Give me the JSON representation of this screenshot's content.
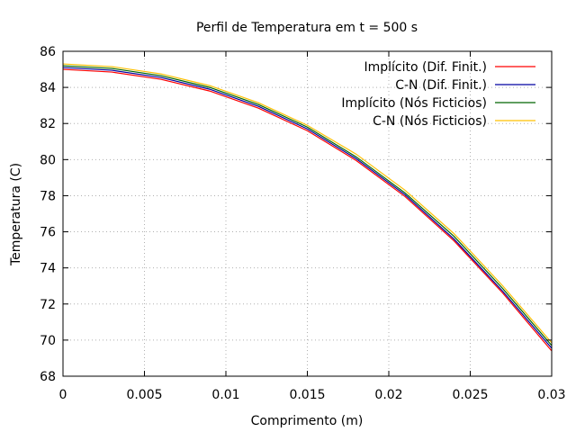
{
  "chart_data": {
    "type": "line",
    "title": "Perfil de Temperatura em t = 500 s",
    "xlabel": "Comprimento (m)",
    "ylabel": "Temperatura (C)",
    "xlim": [
      0,
      0.03
    ],
    "ylim": [
      68,
      86
    ],
    "xticks": [
      "0",
      "0.005",
      "0.01",
      "0.015",
      "0.02",
      "0.025",
      "0.03"
    ],
    "yticks": [
      "68",
      "70",
      "72",
      "74",
      "76",
      "78",
      "80",
      "82",
      "84",
      "86"
    ],
    "grid": true,
    "legend_position": "top-right",
    "x": [
      0,
      0.003,
      0.006,
      0.009,
      0.012,
      0.015,
      0.018,
      0.021,
      0.024,
      0.027,
      0.03
    ],
    "series": [
      {
        "name": "Implícito (Dif. Finit.)",
        "color": "#ff0000",
        "values": [
          85.0,
          84.85,
          84.45,
          83.8,
          82.85,
          81.6,
          79.95,
          77.95,
          75.5,
          72.6,
          69.4
        ]
      },
      {
        "name": "C-N (Dif. Finit.)",
        "color": "#0000a0",
        "values": [
          85.1,
          84.95,
          84.55,
          83.9,
          82.95,
          81.7,
          80.05,
          78.05,
          75.6,
          72.7,
          69.55
        ]
      },
      {
        "name": "Implícito (Nós Ficticios)",
        "color": "#006400",
        "values": [
          85.2,
          85.05,
          84.65,
          84.0,
          83.05,
          81.8,
          80.15,
          78.15,
          75.75,
          72.85,
          69.7
        ]
      },
      {
        "name": "C-N (Nós Ficticios)",
        "color": "#ffc000",
        "values": [
          85.3,
          85.15,
          84.75,
          84.1,
          83.15,
          81.9,
          80.3,
          78.3,
          75.9,
          73.0,
          69.85
        ]
      }
    ]
  }
}
